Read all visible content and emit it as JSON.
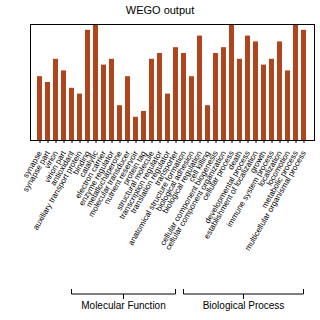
{
  "chart_data": {
    "type": "bar",
    "title": "WEGO output",
    "categories": [
      "synapse",
      "synapse part",
      "virion",
      "virion part",
      "antioxidant",
      "auxiliary transport protein",
      "binding",
      "catalytic",
      "electron carrier",
      "enzyme regulator",
      "metallochaperone",
      "molecular transducer",
      "nutrient reservoir",
      "protein tag",
      "structural molecule",
      "transcription regulator",
      "translation regulator",
      "transporter",
      "anatomical structure formation",
      "biological adhesion",
      "biological regulation",
      "cell killing",
      "cellular component biogenesis",
      "cellular component organization",
      "cellular process",
      "death",
      "developmental process",
      "establishment of localization",
      "growth",
      "immune system process",
      "localization",
      "locomotion",
      "metabolic process",
      "multicellular organismal process"
    ],
    "values": [
      55,
      50,
      70,
      60,
      45,
      40,
      95,
      100,
      65,
      70,
      30,
      55,
      20,
      25,
      70,
      75,
      40,
      80,
      75,
      55,
      90,
      30,
      75,
      80,
      100,
      70,
      90,
      85,
      65,
      70,
      85,
      60,
      100,
      95
    ],
    "color": "#b0441c",
    "ylim": [
      0,
      100
    ],
    "tick_labels": "x",
    "annotations": [
      {
        "text": "Molecular Function",
        "from": "antioxidant",
        "to": "transporter"
      },
      {
        "text": "Biological Process",
        "from": "anatomical structure formation",
        "to": "multicellular organismal process"
      }
    ]
  }
}
